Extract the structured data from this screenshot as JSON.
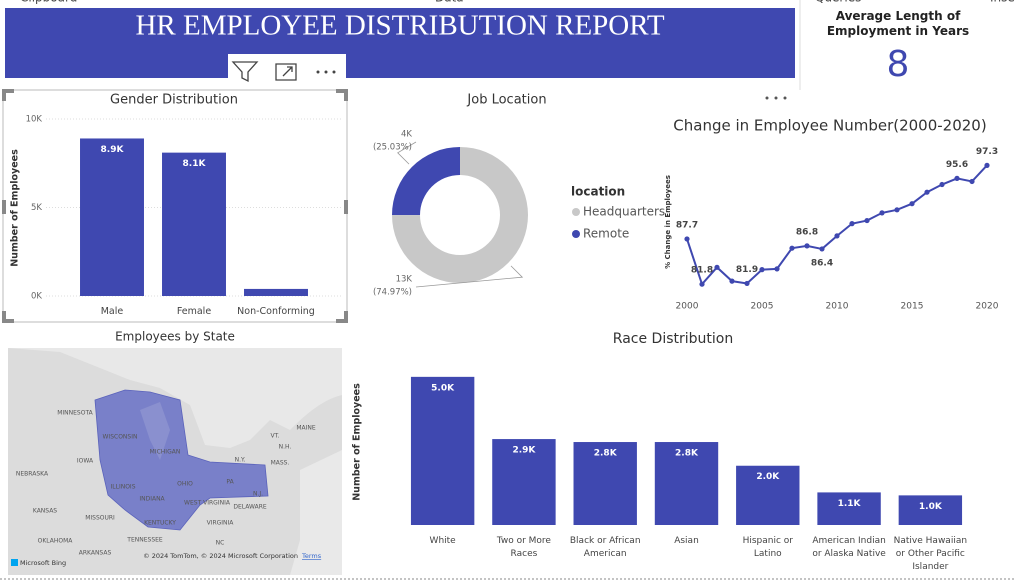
{
  "ribbon": [
    "Clipboard",
    "Data",
    "Queries",
    "Inse"
  ],
  "header": {
    "title": "HR EMPLOYEE DISTRIBUTION REPORT"
  },
  "card": {
    "label": "Average Length of Employment in Years",
    "value": "8"
  },
  "map": {
    "title": "Employees by State",
    "labels": [
      "MINNESOTA",
      "WISCONSIN",
      "MICHIGAN",
      "IOWA",
      "ILLINOIS",
      "INDIANA",
      "OHIO",
      "PA",
      "N.Y.",
      "MAINE",
      "VT.",
      "N.H.",
      "MASS.",
      "N.J.",
      "NEBRASKA",
      "KANSAS",
      "MISSOURI",
      "KENTUCKY",
      "WEST VIRGINIA",
      "VIRGINIA",
      "DELAWARE",
      "TENNESSEE",
      "OKLAHOMA",
      "ARKANSAS",
      "NC"
    ],
    "attribution": "© 2024 TomTom, © 2024 Microsoft Corporation",
    "terms": "Terms",
    "brand": "Microsoft Bing"
  },
  "chart_data": [
    {
      "type": "bar",
      "title": "Gender Distribution",
      "y_label": "Number of Employees",
      "categories": [
        "Male",
        "Female",
        "Non-Conforming"
      ],
      "values": [
        8900,
        8100,
        400
      ],
      "value_labels": [
        "8.9K",
        "8.1K",
        null
      ],
      "color": "#3f48b0",
      "ylim": [
        0,
        10000
      ],
      "yticks": [
        {
          "value": 0,
          "label": "0K"
        },
        {
          "value": 5000,
          "label": "5K"
        },
        {
          "value": 10000,
          "label": "10K"
        }
      ],
      "grid": true
    },
    {
      "type": "donut",
      "title": "Job Location",
      "legend_title": "location",
      "categories": [
        "Headquarters",
        "Remote"
      ],
      "values": [
        74.97,
        25.03
      ],
      "value_labels": [
        "(74.97%)",
        "(25.03%)"
      ],
      "count_labels": [
        "13K",
        "4K"
      ],
      "colors": [
        "#c8c8c8",
        "#3f48b0"
      ]
    },
    {
      "type": "line",
      "title": "Change in Employee Number(2000-2020)",
      "y_label": "% Change in Employees",
      "x": [
        2000,
        2001,
        2002,
        2003,
        2004,
        2005,
        2006,
        2007,
        2008,
        2009,
        2010,
        2011,
        2012,
        2013,
        2014,
        2015,
        2016,
        2017,
        2018,
        2019,
        2020
      ],
      "values": [
        87.7,
        81.8,
        84.0,
        82.2,
        81.9,
        83.7,
        83.8,
        86.5,
        86.8,
        86.4,
        88.1,
        89.7,
        90.1,
        91.1,
        91.5,
        92.3,
        93.8,
        94.8,
        95.6,
        95.2,
        97.3
      ],
      "value_labels": [
        "87.7",
        "81.8",
        null,
        null,
        "81.9",
        null,
        null,
        null,
        "86.8",
        "86.4",
        null,
        null,
        null,
        null,
        null,
        null,
        null,
        null,
        "95.6",
        null,
        "97.3"
      ],
      "color": "#3f48b0",
      "xlim": [
        2000,
        2020
      ],
      "xticks": [
        2000,
        2005,
        2010,
        2015,
        2020
      ],
      "ylim": [
        80,
        98
      ]
    },
    {
      "type": "bar",
      "title": "Race Distribution",
      "y_label": "Number of Employees",
      "categories": [
        "White",
        "Two or More Races",
        "Black or African American",
        "Asian",
        "Hispanic or Latino",
        "American Indian or Alaska Native",
        "Native Hawaiian or Other Pacific Islander"
      ],
      "values": [
        5000,
        2900,
        2800,
        2800,
        2000,
        1100,
        1000
      ],
      "value_labels": [
        "5.0K",
        "2.9K",
        "2.8K",
        "2.8K",
        "2.0K",
        "1.1K",
        "1.0K"
      ],
      "color": "#3f48b0",
      "ylim": [
        0,
        5400
      ],
      "grid": false
    }
  ]
}
